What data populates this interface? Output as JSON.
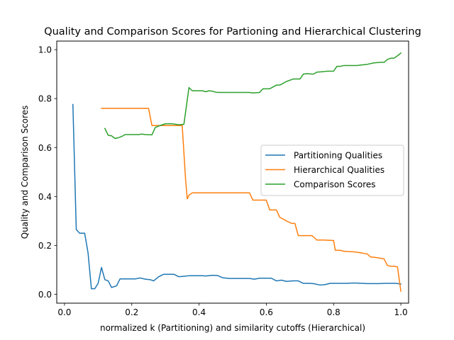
{
  "chart_data": {
    "type": "line",
    "title": "Quality and Comparison Scores for Partioning and Hierarchical Clustering",
    "xlabel": "normalized k (Partitioning) and similarity cutoffs (Hierarchical)",
    "ylabel": "Quality and Comparison Scores",
    "xlim": [
      -0.023,
      1.023
    ],
    "ylim": [
      -0.036,
      1.035
    ],
    "xticks": [
      0.0,
      0.2,
      0.4,
      0.6,
      0.8,
      1.0
    ],
    "xtick_labels": [
      "0.0",
      "0.2",
      "0.4",
      "0.6",
      "0.8",
      "1.0"
    ],
    "yticks": [
      0.0,
      0.2,
      0.4,
      0.6,
      0.8,
      1.0
    ],
    "ytick_labels": [
      "0.0",
      "0.2",
      "0.4",
      "0.6",
      "0.8",
      "1.0"
    ],
    "grid": false,
    "legend_position": "center-right",
    "series": [
      {
        "name": "Partitioning Qualities",
        "color": "#1f77b4",
        "x": [
          0.025,
          0.035,
          0.045,
          0.06,
          0.07,
          0.08,
          0.09,
          0.1,
          0.11,
          0.12,
          0.13,
          0.14,
          0.155,
          0.165,
          0.18,
          0.195,
          0.21,
          0.225,
          0.24,
          0.255,
          0.265,
          0.28,
          0.295,
          0.31,
          0.325,
          0.34,
          0.355,
          0.37,
          0.385,
          0.4,
          0.41,
          0.42,
          0.44,
          0.455,
          0.47,
          0.49,
          0.505,
          0.52,
          0.535,
          0.55,
          0.565,
          0.58,
          0.6,
          0.615,
          0.63,
          0.645,
          0.66,
          0.68,
          0.695,
          0.71,
          0.725,
          0.74,
          0.76,
          0.775,
          0.79,
          0.81,
          0.825,
          0.84,
          0.855,
          0.87,
          0.885,
          0.9,
          0.92,
          0.935,
          0.955,
          0.97,
          0.985,
          1.0
        ],
        "y": [
          0.776,
          0.265,
          0.25,
          0.25,
          0.17,
          0.023,
          0.023,
          0.045,
          0.11,
          0.06,
          0.055,
          0.028,
          0.035,
          0.063,
          0.063,
          0.063,
          0.063,
          0.067,
          0.062,
          0.06,
          0.055,
          0.072,
          0.082,
          0.082,
          0.082,
          0.072,
          0.074,
          0.076,
          0.076,
          0.076,
          0.076,
          0.075,
          0.078,
          0.077,
          0.068,
          0.065,
          0.065,
          0.065,
          0.065,
          0.065,
          0.062,
          0.066,
          0.066,
          0.066,
          0.055,
          0.058,
          0.053,
          0.055,
          0.055,
          0.045,
          0.045,
          0.044,
          0.038,
          0.04,
          0.045,
          0.045,
          0.045,
          0.045,
          0.046,
          0.046,
          0.045,
          0.044,
          0.044,
          0.044,
          0.045,
          0.045,
          0.045,
          0.042
        ]
      },
      {
        "name": "Hierarchical Qualities",
        "color": "#ff7f0e",
        "x": [
          0.11,
          0.25,
          0.26,
          0.35,
          0.36,
          0.365,
          0.37,
          0.38,
          0.55,
          0.56,
          0.575,
          0.6,
          0.61,
          0.63,
          0.64,
          0.66,
          0.675,
          0.685,
          0.695,
          0.7,
          0.72,
          0.735,
          0.74,
          0.75,
          0.77,
          0.8,
          0.805,
          0.82,
          0.83,
          0.84,
          0.86,
          0.87,
          0.88,
          0.9,
          0.91,
          0.93,
          0.95,
          0.96,
          0.97,
          0.98,
          0.99,
          1.0
        ],
        "y": [
          0.76,
          0.76,
          0.69,
          0.69,
          0.47,
          0.39,
          0.405,
          0.415,
          0.415,
          0.385,
          0.385,
          0.385,
          0.345,
          0.345,
          0.315,
          0.3,
          0.29,
          0.29,
          0.24,
          0.24,
          0.24,
          0.24,
          0.235,
          0.222,
          0.222,
          0.22,
          0.18,
          0.18,
          0.176,
          0.175,
          0.174,
          0.172,
          0.17,
          0.165,
          0.153,
          0.15,
          0.145,
          0.118,
          0.115,
          0.115,
          0.112,
          0.013
        ]
      },
      {
        "name": "Comparison Scores",
        "color": "#2ca02c",
        "x": [
          0.12,
          0.13,
          0.14,
          0.15,
          0.16,
          0.17,
          0.18,
          0.2,
          0.22,
          0.23,
          0.24,
          0.26,
          0.27,
          0.28,
          0.3,
          0.32,
          0.34,
          0.355,
          0.37,
          0.38,
          0.41,
          0.42,
          0.43,
          0.44,
          0.45,
          0.46,
          0.48,
          0.52,
          0.55,
          0.56,
          0.58,
          0.59,
          0.6,
          0.61,
          0.63,
          0.64,
          0.66,
          0.67,
          0.68,
          0.7,
          0.71,
          0.72,
          0.74,
          0.75,
          0.77,
          0.78,
          0.8,
          0.81,
          0.82,
          0.83,
          0.85,
          0.86,
          0.87,
          0.88,
          0.9,
          0.92,
          0.94,
          0.95,
          0.96,
          0.97,
          0.98,
          0.99,
          1.0
        ],
        "y": [
          0.678,
          0.65,
          0.648,
          0.637,
          0.64,
          0.645,
          0.653,
          0.653,
          0.653,
          0.655,
          0.653,
          0.652,
          0.682,
          0.688,
          0.697,
          0.697,
          0.693,
          0.695,
          0.845,
          0.832,
          0.832,
          0.828,
          0.832,
          0.83,
          0.826,
          0.825,
          0.825,
          0.825,
          0.825,
          0.823,
          0.825,
          0.84,
          0.84,
          0.84,
          0.855,
          0.855,
          0.87,
          0.875,
          0.88,
          0.88,
          0.9,
          0.902,
          0.9,
          0.908,
          0.91,
          0.912,
          0.912,
          0.932,
          0.932,
          0.935,
          0.935,
          0.935,
          0.935,
          0.937,
          0.94,
          0.946,
          0.948,
          0.948,
          0.96,
          0.965,
          0.965,
          0.975,
          0.986
        ]
      }
    ]
  }
}
